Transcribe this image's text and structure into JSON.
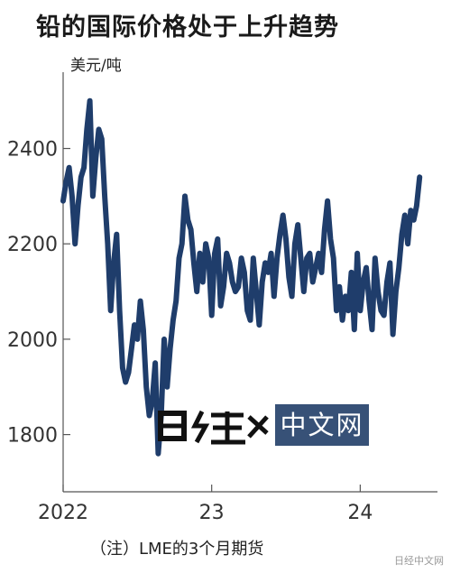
{
  "title": "铅的国际价格处于上升趋势",
  "unit": "美元/吨",
  "note": "（注）LME的3个月期货",
  "logo": {
    "glyph_text": "日经",
    "box_text": "中文网"
  },
  "watermark": "日经中文网",
  "chart_data": {
    "type": "line",
    "title": "铅的国际价格处于上升趋势",
    "ylabel": "美元/吨",
    "xlabel": "",
    "ylim": [
      1680,
      2560
    ],
    "xlim": [
      2022.0,
      2024.52
    ],
    "x_ticks": [
      {
        "value": 2022,
        "label": "2022"
      },
      {
        "value": 2023,
        "label": "23"
      },
      {
        "value": 2024,
        "label": "24"
      }
    ],
    "y_ticks": [
      1800,
      2000,
      2200,
      2400
    ],
    "grid": false,
    "line_color": "#1f3d6b",
    "series": [
      {
        "name": "",
        "x": [
          2022.0,
          2022.02,
          2022.04,
          2022.06,
          2022.08,
          2022.1,
          2022.12,
          2022.14,
          2022.16,
          2022.18,
          2022.2,
          2022.22,
          2022.24,
          2022.26,
          2022.28,
          2022.3,
          2022.32,
          2022.34,
          2022.36,
          2022.38,
          2022.4,
          2022.42,
          2022.44,
          2022.46,
          2022.48,
          2022.5,
          2022.52,
          2022.54,
          2022.56,
          2022.58,
          2022.6,
          2022.62,
          2022.64,
          2022.66,
          2022.68,
          2022.7,
          2022.72,
          2022.74,
          2022.76,
          2022.78,
          2022.8,
          2022.82,
          2022.84,
          2022.86,
          2022.88,
          2022.9,
          2022.92,
          2022.94,
          2022.96,
          2022.98,
          2023.0,
          2023.02,
          2023.04,
          2023.06,
          2023.08,
          2023.1,
          2023.12,
          2023.14,
          2023.16,
          2023.18,
          2023.2,
          2023.22,
          2023.24,
          2023.26,
          2023.28,
          2023.3,
          2023.32,
          2023.34,
          2023.36,
          2023.38,
          2023.4,
          2023.42,
          2023.44,
          2023.46,
          2023.48,
          2023.5,
          2023.52,
          2023.54,
          2023.56,
          2023.58,
          2023.6,
          2023.62,
          2023.64,
          2023.66,
          2023.68,
          2023.7,
          2023.72,
          2023.74,
          2023.76,
          2023.78,
          2023.8,
          2023.82,
          2023.84,
          2023.86,
          2023.88,
          2023.9,
          2023.92,
          2023.94,
          2023.96,
          2023.98,
          2024.0,
          2024.02,
          2024.04,
          2024.06,
          2024.08,
          2024.1,
          2024.12,
          2024.14,
          2024.16,
          2024.18,
          2024.2,
          2024.22,
          2024.24,
          2024.26,
          2024.28,
          2024.3,
          2024.32,
          2024.34,
          2024.36,
          2024.38,
          2024.4
        ],
        "values": [
          2290,
          2330,
          2360,
          2300,
          2200,
          2280,
          2340,
          2360,
          2440,
          2500,
          2300,
          2380,
          2440,
          2420,
          2300,
          2200,
          2060,
          2160,
          2220,
          2060,
          1940,
          1910,
          1930,
          1980,
          2030,
          2000,
          2080,
          2020,
          1900,
          1840,
          1870,
          1950,
          1760,
          1840,
          2000,
          1900,
          1980,
          2040,
          2080,
          2170,
          2200,
          2300,
          2250,
          2230,
          2160,
          2100,
          2180,
          2120,
          2200,
          2170,
          2050,
          2180,
          2210,
          2070,
          2110,
          2180,
          2160,
          2120,
          2100,
          2110,
          2170,
          2140,
          2060,
          2040,
          2170,
          2100,
          2030,
          2120,
          2160,
          2140,
          2180,
          2090,
          2170,
          2220,
          2260,
          2210,
          2130,
          2090,
          2200,
          2240,
          2170,
          2100,
          2170,
          2180,
          2120,
          2150,
          2180,
          2140,
          2230,
          2290,
          2210,
          2170,
          2060,
          2110,
          2040,
          2090,
          2060,
          2140,
          2020,
          2180,
          2060,
          2120,
          2150,
          2080,
          2020,
          2170,
          2100,
          2060,
          2050,
          2120,
          2160,
          2010,
          2100,
          2150,
          2220,
          2260,
          2200,
          2270,
          2250,
          2280,
          2340
        ]
      }
    ]
  }
}
